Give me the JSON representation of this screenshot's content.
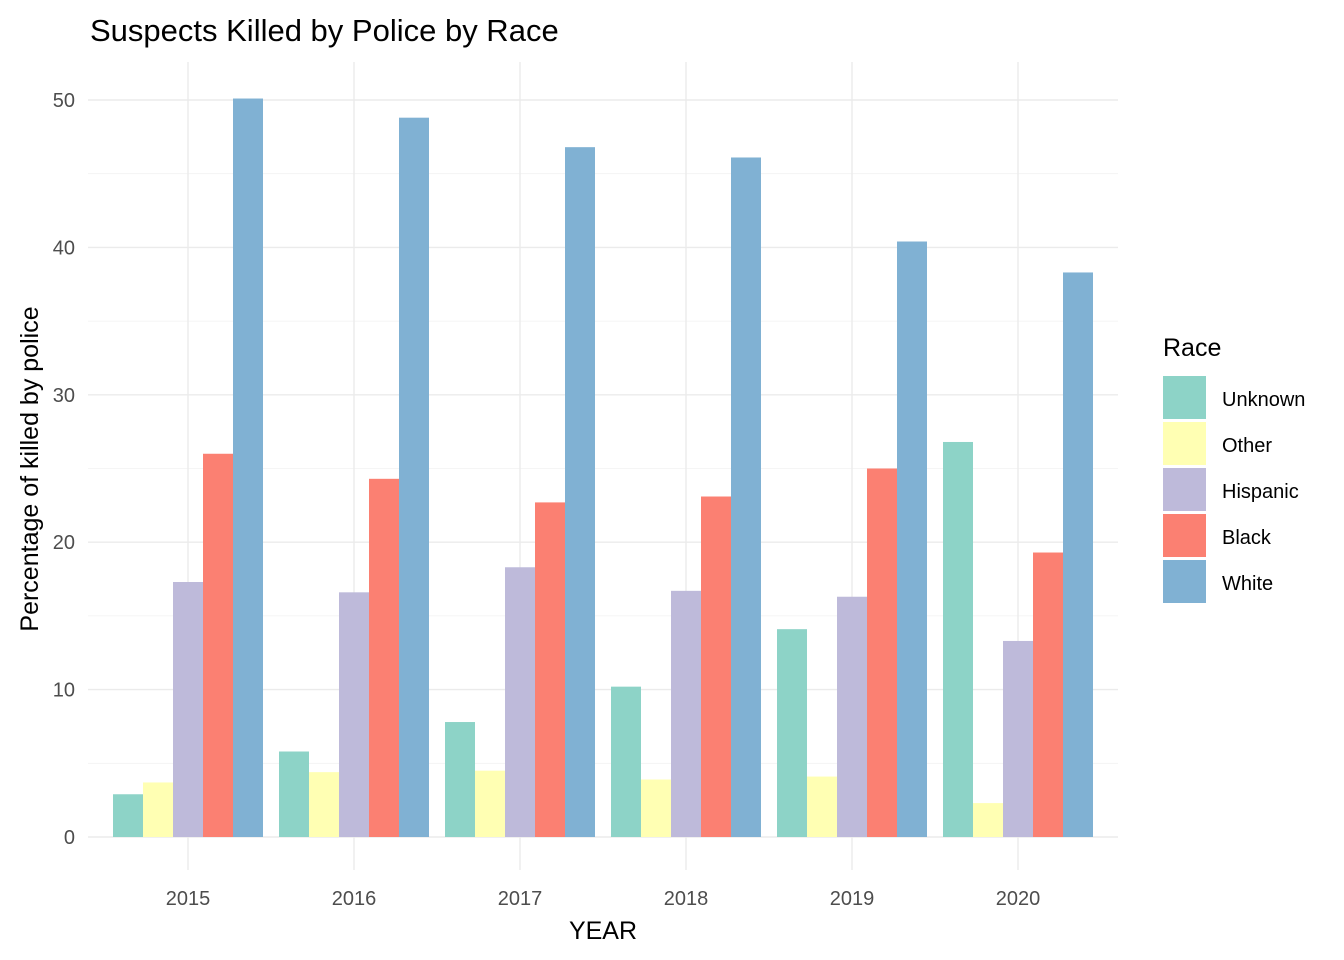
{
  "chart_data": {
    "type": "bar",
    "title": "Suspects Killed by Police by Race",
    "xlabel": "YEAR",
    "ylabel": "Percentage of killed by police",
    "categories": [
      "2015",
      "2016",
      "2017",
      "2018",
      "2019",
      "2020"
    ],
    "ylim": [
      0,
      50
    ],
    "yticks": [
      0,
      10,
      20,
      30,
      40,
      50
    ],
    "grid": true,
    "legend": {
      "title": "Race",
      "placement": "right"
    },
    "series": [
      {
        "name": "Unknown",
        "color": "#8dd3c7",
        "values": [
          2.9,
          5.8,
          7.8,
          10.2,
          14.1,
          26.8
        ]
      },
      {
        "name": "Other",
        "color": "#ffffb3",
        "values": [
          3.7,
          4.4,
          4.5,
          3.9,
          4.1,
          2.3
        ]
      },
      {
        "name": "Hispanic",
        "color": "#bebada",
        "values": [
          17.3,
          16.6,
          18.3,
          16.7,
          16.3,
          13.3
        ]
      },
      {
        "name": "Black",
        "color": "#fb8072",
        "values": [
          26.0,
          24.3,
          22.7,
          23.1,
          25.0,
          19.3
        ]
      },
      {
        "name": "White",
        "color": "#80b1d3",
        "values": [
          50.1,
          48.8,
          46.8,
          46.1,
          40.4,
          38.3
        ]
      }
    ]
  }
}
